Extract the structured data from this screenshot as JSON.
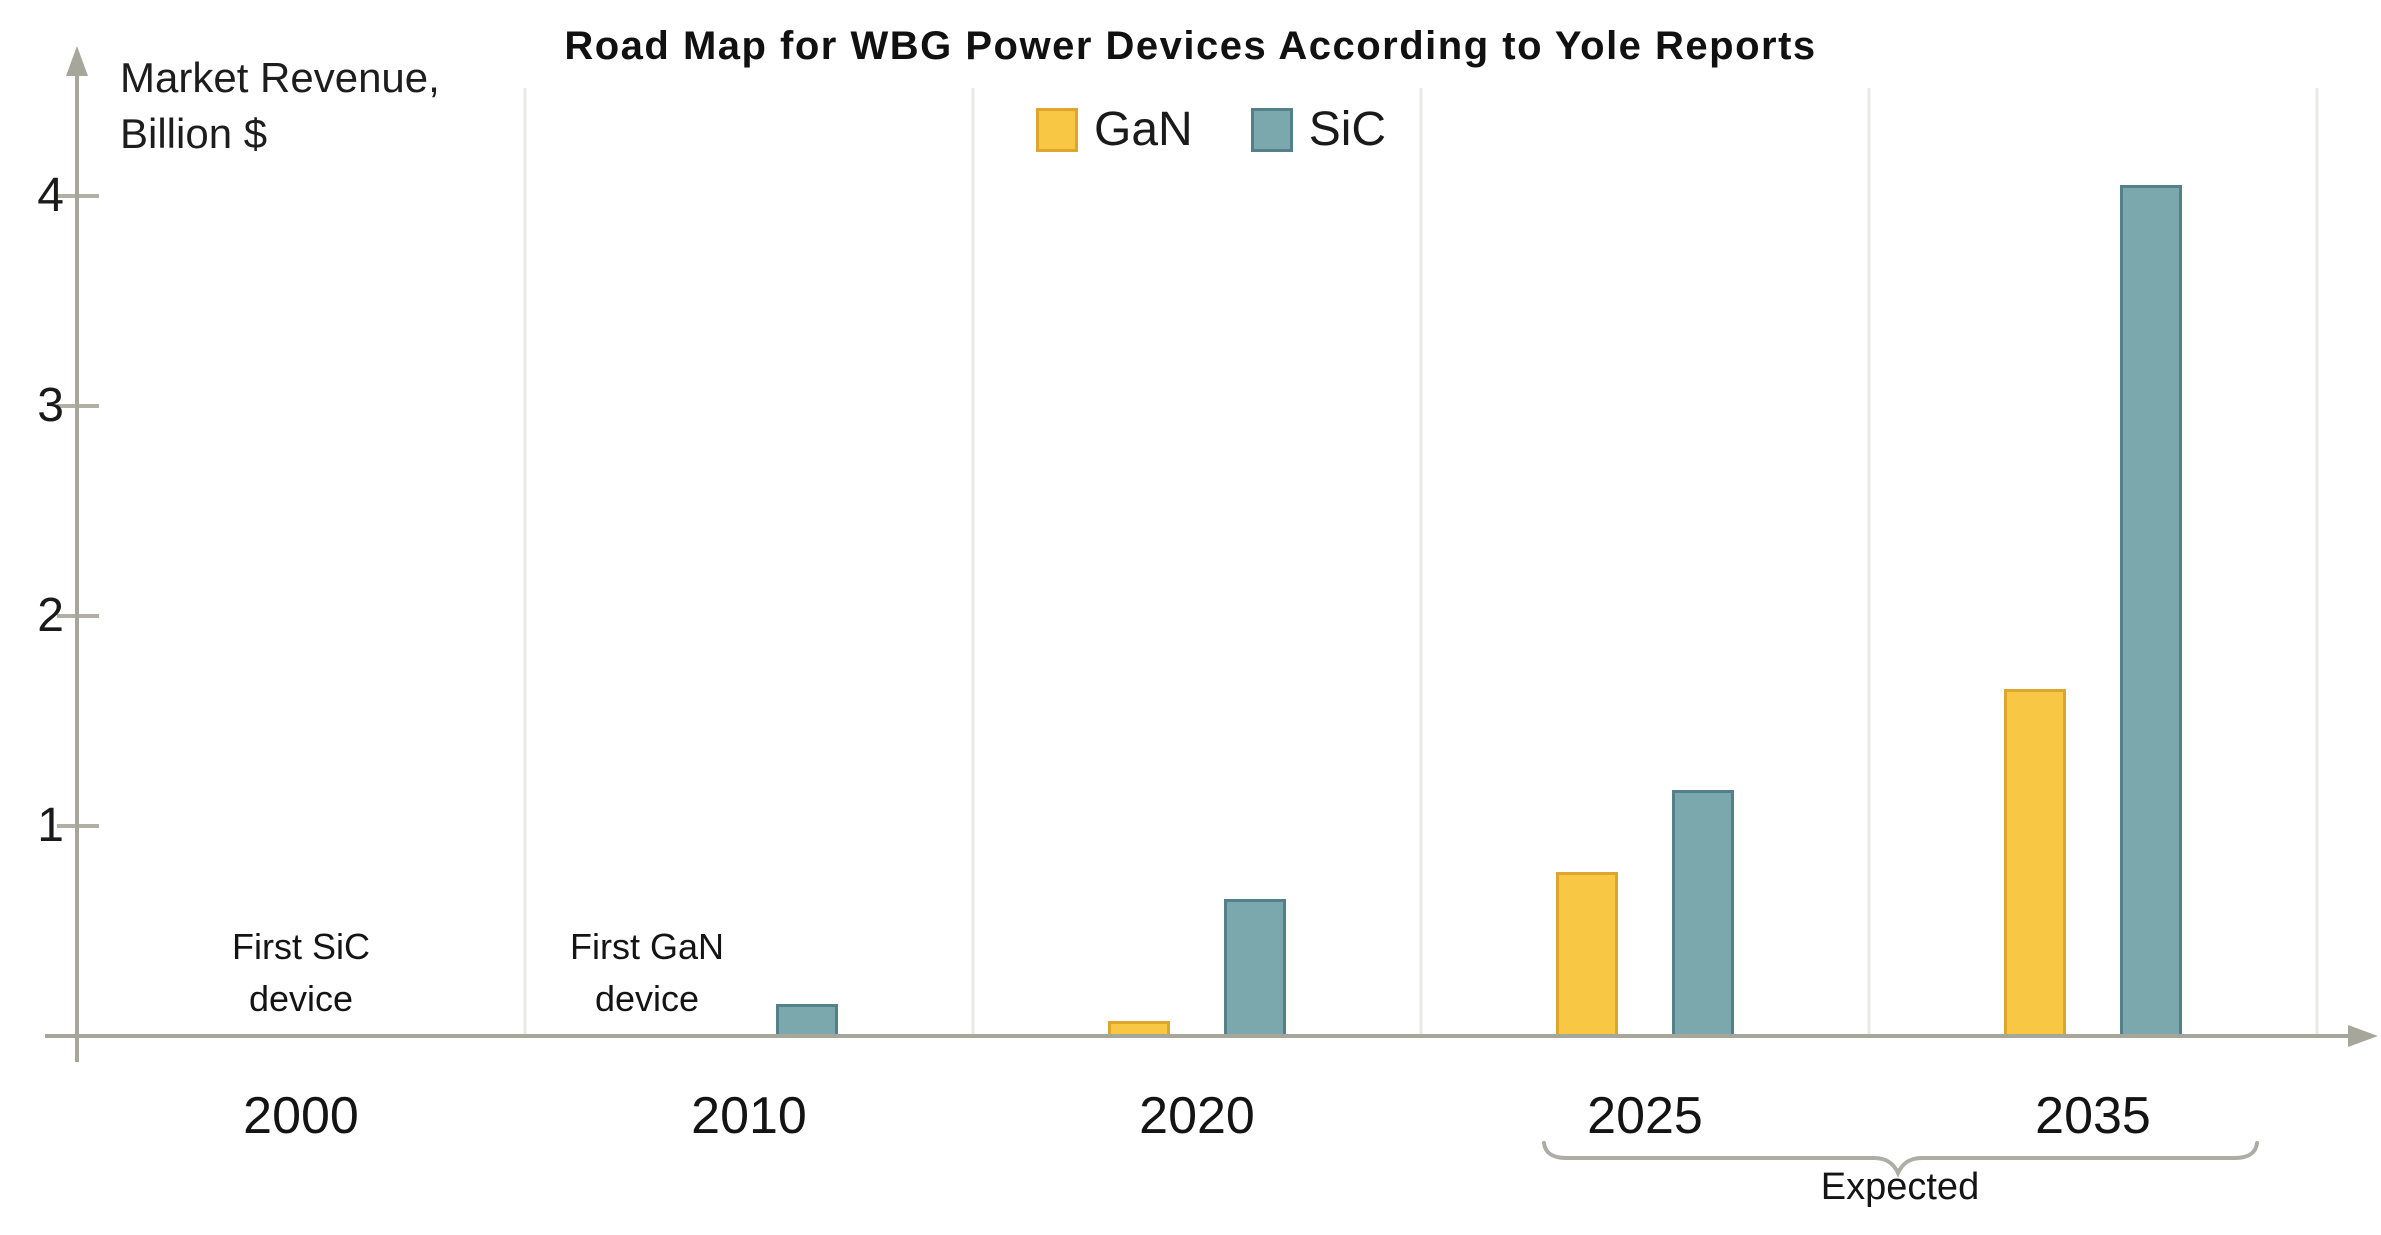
{
  "title": "Road Map for WBG Power Devices According to Yole Reports",
  "y_axis": {
    "label_line1": "Market Revenue,",
    "label_line2": "Billion $"
  },
  "colors": {
    "gan_fill": "#F8C845",
    "gan_border": "#DEA52F",
    "sic_fill": "#7AA8AC",
    "sic_border": "#54808A",
    "axis": "#A6A69A",
    "tick": "#B0B0A5",
    "gridline": "#E9E9E7",
    "brace": "#ADADA3",
    "text": "#1A1A1A"
  },
  "chart_data": {
    "type": "bar",
    "title": "Road Map for WBG Power Devices According to Yole Reports",
    "xlabel": "",
    "ylabel": "Market Revenue, Billion $",
    "categories": [
      "2000",
      "2010",
      "2020",
      "2025",
      "2035"
    ],
    "series": [
      {
        "name": "GaN",
        "color": "#F8C845",
        "border": "#DEA52F",
        "values": [
          0,
          0,
          0.07,
          0.78,
          1.65
        ]
      },
      {
        "name": "SiC",
        "color": "#7AA8AC",
        "border": "#54808A",
        "values": [
          0,
          0.15,
          0.65,
          1.17,
          4.05
        ]
      }
    ],
    "ylim": [
      0,
      4.5
    ],
    "yticks": [
      1,
      2,
      3,
      4
    ],
    "grid": "vertical-category-separators-only",
    "legend_position": "top-center",
    "annotations": [
      {
        "line1": "First SiC",
        "line2": "device",
        "category": "2000"
      },
      {
        "line1": "First GaN",
        "line2": "device",
        "category": "2010"
      }
    ],
    "expected_bracket": {
      "label": "Expected",
      "categories": [
        "2025",
        "2035"
      ]
    }
  }
}
